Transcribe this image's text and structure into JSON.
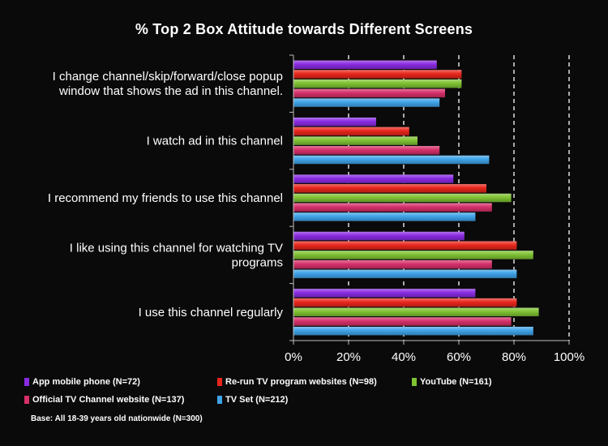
{
  "chart_data": {
    "type": "bar",
    "orientation": "horizontal",
    "title": "% Top 2 Box Attitude towards Different Screens",
    "categories": [
      "I change channel/skip/forward/close popup window that shows the ad in this channel.",
      "I watch ad in this channel",
      "I recommend my friends to use this channel",
      "I like using this channel for watching TV programs",
      "I use this channel regularly"
    ],
    "category_lines": [
      [
        "I change channel/skip/forward/close popup",
        "window that shows the ad in this channel."
      ],
      [
        "I watch ad in this channel"
      ],
      [
        "I recommend my friends to use this channel"
      ],
      [
        "I like using this channel for watching TV",
        "programs"
      ],
      [
        "I use this channel regularly"
      ]
    ],
    "series": [
      {
        "name": "App mobile phone (N=72)",
        "color": "#8a2be2",
        "values": [
          52,
          30,
          58,
          62,
          66
        ]
      },
      {
        "name": "Re-run TV program websites (N=98)",
        "color": "#e8261c",
        "values": [
          61,
          42,
          70,
          81,
          81
        ]
      },
      {
        "name": "YouTube (N=161)",
        "color": "#7fc232",
        "values": [
          61,
          45,
          79,
          87,
          89
        ]
      },
      {
        "name": "Official TV Channel website (N=137)",
        "color": "#d6306a",
        "values": [
          55,
          53,
          72,
          72,
          79
        ]
      },
      {
        "name": "TV Set (N=212)",
        "color": "#3fa3e8",
        "values": [
          53,
          71,
          66,
          81,
          87
        ]
      }
    ],
    "xlim": [
      0,
      100
    ],
    "xticks": [
      0,
      20,
      40,
      60,
      80,
      100
    ],
    "xtick_labels": [
      "0%",
      "20%",
      "40%",
      "60%",
      "80%",
      "100%"
    ],
    "grid": "vertical dashed",
    "legend_position": "bottom"
  },
  "base_note": "Base: All 18-39 years old nationwide (N=300)"
}
